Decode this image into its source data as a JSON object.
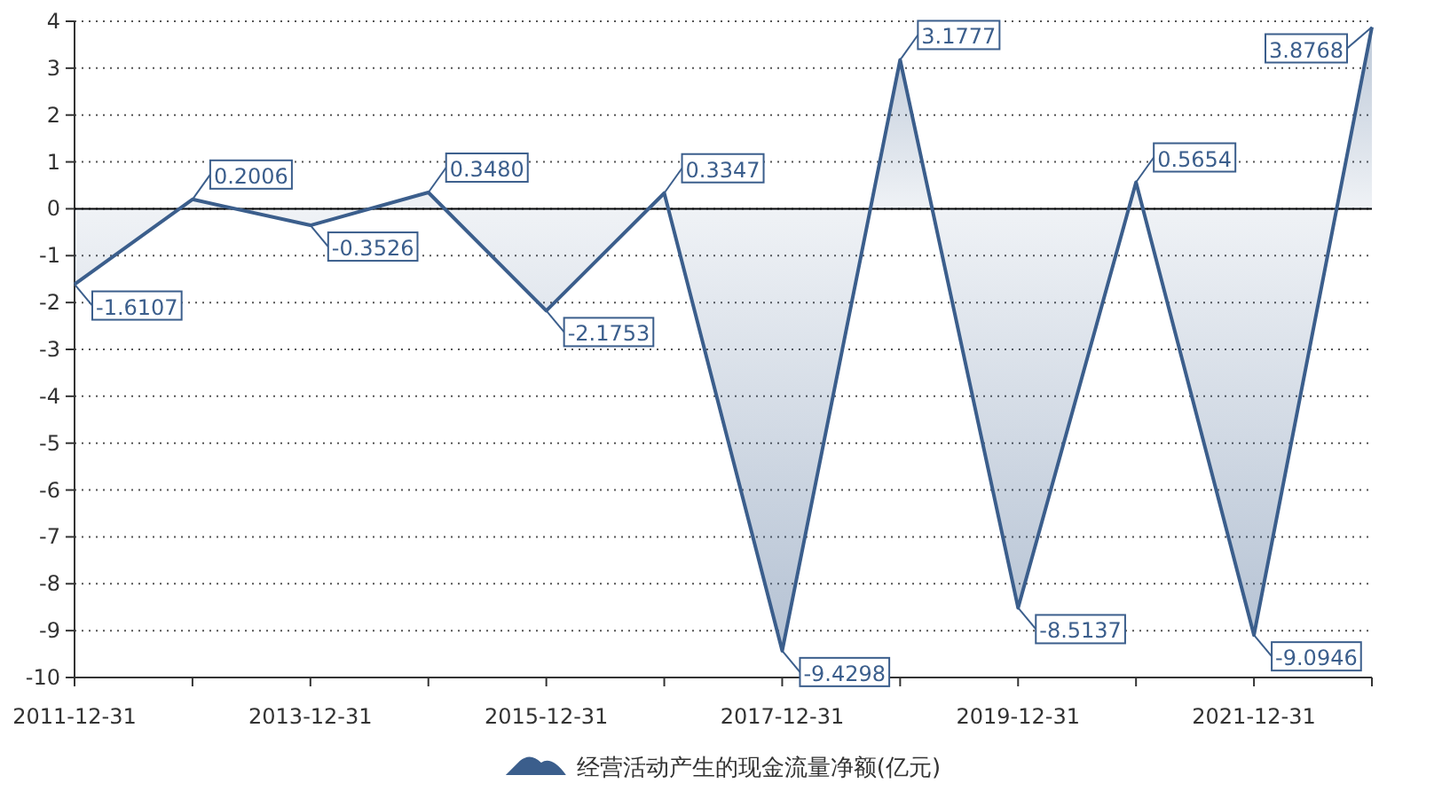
{
  "chart_data": {
    "type": "area",
    "categories": [
      "2011-12-31",
      null,
      "2013-12-31",
      null,
      "2015-12-31",
      null,
      "2017-12-31",
      null,
      "2019-12-31",
      null,
      "2021-12-31",
      null
    ],
    "series": [
      {
        "name": "经营活动产生的现金流量净额(亿元)",
        "color": "#3b5e8c",
        "values": [
          -1.6107,
          0.2006,
          -0.3526,
          0.348,
          -2.1753,
          0.3347,
          -9.4298,
          3.1777,
          -8.5137,
          0.5654,
          -9.0946,
          3.8768
        ]
      }
    ],
    "ylim": [
      -10,
      4
    ],
    "yticks": [
      -10,
      -9,
      -8,
      -7,
      -6,
      -5,
      -4,
      -3,
      -2,
      -1,
      0,
      1,
      2,
      3,
      4
    ],
    "value_labels": [
      "-1.6107",
      "0.2006",
      "-0.3526",
      "0.3480",
      "-2.1753",
      "0.3347",
      "-9.4298",
      "3.1777",
      "-8.5137",
      "0.5654",
      "-9.0946",
      "3.8768"
    ],
    "ref_lines": [
      {
        "axis": "y",
        "value": 0,
        "color": "#000000"
      }
    ],
    "grid": "y",
    "legend": "bottom"
  }
}
